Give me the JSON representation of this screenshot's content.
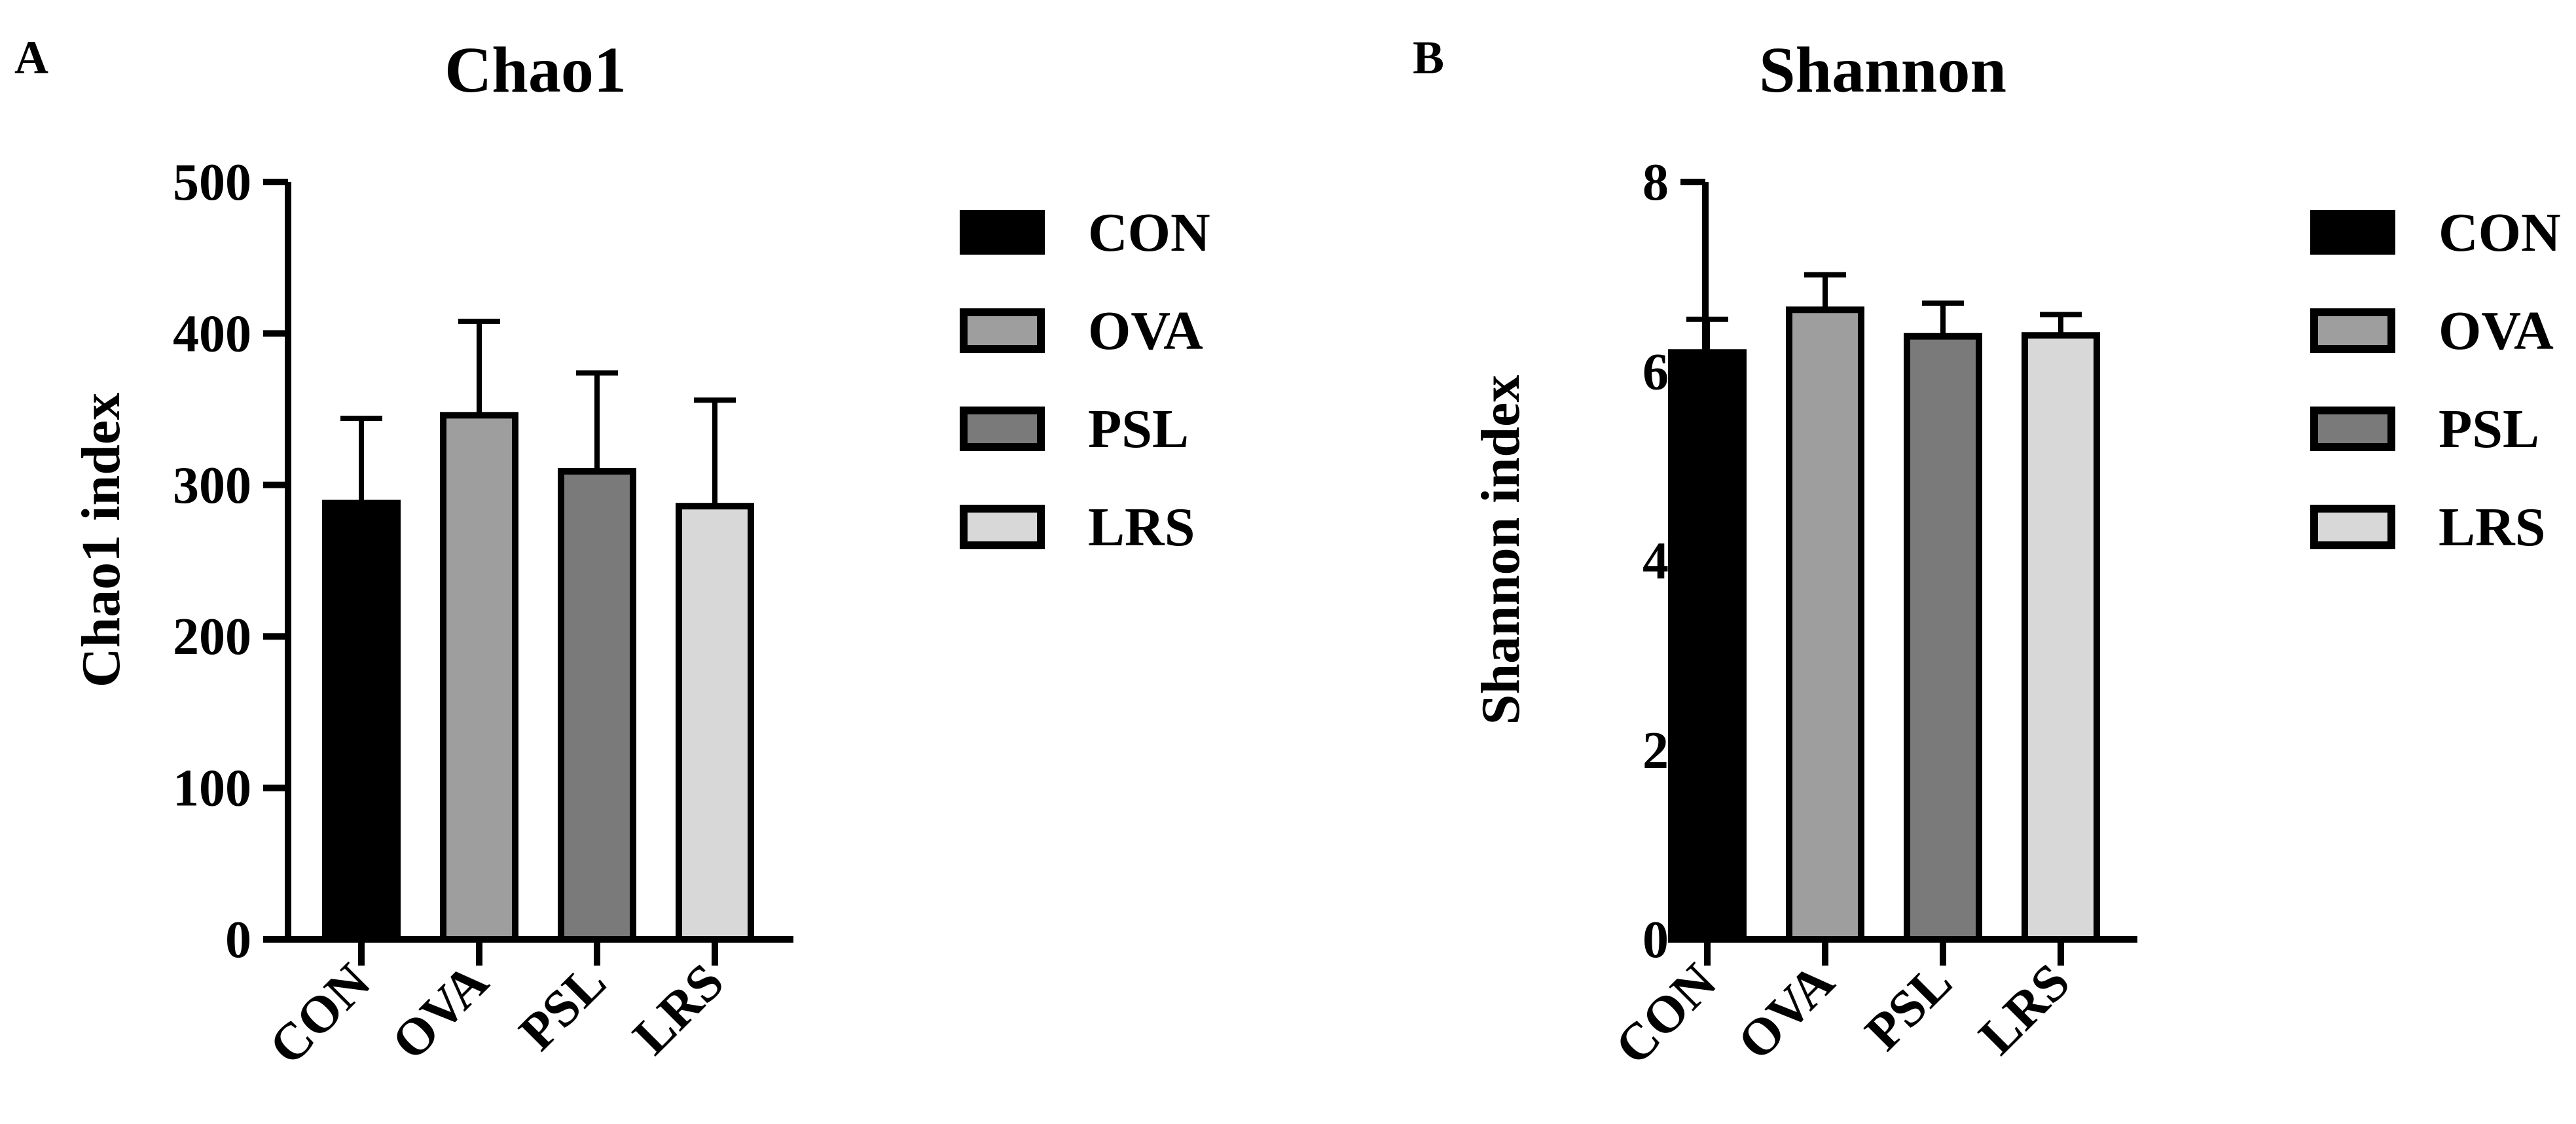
{
  "chart_data": [
    {
      "type": "bar",
      "panel_label": "A",
      "title": "Chao1",
      "xlabel": "",
      "ylabel": "Chao1 index",
      "categories": [
        "CON",
        "OVA",
        "PSL",
        "LRS"
      ],
      "values": [
        288,
        346,
        309,
        286
      ],
      "error": [
        56,
        62,
        65,
        70
      ],
      "ylim": [
        0,
        500
      ],
      "yticks": [
        "0",
        "100",
        "200",
        "300",
        "400",
        "500"
      ],
      "colors": [
        "#000000",
        "#9e9e9e",
        "#7a7a7a",
        "#d8d8d8"
      ],
      "legend": [
        "CON",
        "OVA",
        "PSL",
        "LRS"
      ],
      "legend_position": "right",
      "grid": false
    },
    {
      "type": "bar",
      "panel_label": "B",
      "title": "Shannon",
      "xlabel": "",
      "ylabel": "Shannon index",
      "categories": [
        "CON",
        "OVA",
        "PSL",
        "LRS"
      ],
      "values": [
        6.2,
        6.65,
        6.37,
        6.38
      ],
      "error": [
        0.35,
        0.37,
        0.35,
        0.22
      ],
      "ylim": [
        0,
        8
      ],
      "yticks": [
        "0",
        "2",
        "4",
        "6",
        "8"
      ],
      "colors": [
        "#000000",
        "#9e9e9e",
        "#7a7a7a",
        "#d8d8d8"
      ],
      "legend": [
        "CON",
        "OVA",
        "PSL",
        "LRS"
      ],
      "legend_position": "right",
      "grid": false
    }
  ]
}
